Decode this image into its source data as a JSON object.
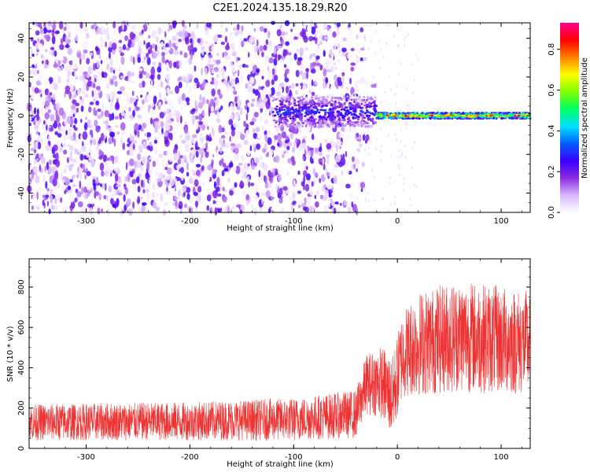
{
  "title": "C2E1.2024.135.18.29.R20",
  "chart_data": [
    {
      "type": "heatmap",
      "xlabel": "Height of straight line (km)",
      "ylabel": "Frequency (Hz)",
      "xlim": [
        -355,
        128
      ],
      "ylim": [
        -50,
        48
      ],
      "xticks": [
        -300,
        -200,
        -100,
        0,
        100
      ],
      "yticks": [
        -40,
        -20,
        0,
        20,
        40
      ],
      "xtick_labels": [
        "-300",
        "-200",
        "-100",
        "0",
        "100"
      ],
      "ytick_labels": [
        "-40",
        "-20",
        "0",
        "20",
        "40"
      ],
      "noise_region_km": [
        -355,
        -30
      ],
      "signal_band": [
        {
          "x_start": -120,
          "x_end": -20,
          "freq_center": 2,
          "freq_halfwidth": 8,
          "level": 0.35
        },
        {
          "x_start": -20,
          "x_end": 128,
          "freq_center": 0,
          "freq_halfwidth": 1.5,
          "level": 0.95
        }
      ],
      "colorbar": {
        "label": "Normalized spectral amplitude",
        "range": [
          0,
          0.93
        ],
        "ticks": [
          0.0,
          0.2,
          0.4,
          0.6,
          0.8
        ],
        "tick_labels": [
          "0.0",
          "0.2",
          "0.4",
          "0.6",
          "0.8"
        ],
        "colors": [
          "#ffffff",
          "#d8b8ff",
          "#8a2be2",
          "#3a00ff",
          "#0060ff",
          "#00e0ff",
          "#00ff60",
          "#80ff00",
          "#ffff00",
          "#ff8000",
          "#ff0000",
          "#ff0090"
        ]
      }
    },
    {
      "type": "line",
      "xlabel": "Height of straight line (km)",
      "ylabel": "SNR (10 * v/v)",
      "xlim": [
        -355,
        128
      ],
      "ylim": [
        0,
        940
      ],
      "xticks": [
        -300,
        -200,
        -100,
        0,
        100
      ],
      "yticks": [
        0,
        200,
        400,
        600,
        800
      ],
      "xtick_labels": [
        "-300",
        "-200",
        "-100",
        "0",
        "100"
      ],
      "ytick_labels": [
        "0",
        "200",
        "400",
        "600",
        "800"
      ],
      "color": "#ee3333",
      "envelope": [
        {
          "x": -355,
          "mean": 130,
          "spread": 90
        },
        {
          "x": -200,
          "mean": 135,
          "spread": 95
        },
        {
          "x": -100,
          "mean": 145,
          "spread": 105
        },
        {
          "x": -40,
          "mean": 170,
          "spread": 120
        },
        {
          "x": -30,
          "mean": 320,
          "spread": 150
        },
        {
          "x": -15,
          "mean": 330,
          "spread": 180
        },
        {
          "x": -5,
          "mean": 250,
          "spread": 200
        },
        {
          "x": 5,
          "mean": 470,
          "spread": 220
        },
        {
          "x": 20,
          "mean": 520,
          "spread": 260
        },
        {
          "x": 60,
          "mean": 560,
          "spread": 280
        },
        {
          "x": 128,
          "mean": 520,
          "spread": 260
        }
      ]
    }
  ]
}
